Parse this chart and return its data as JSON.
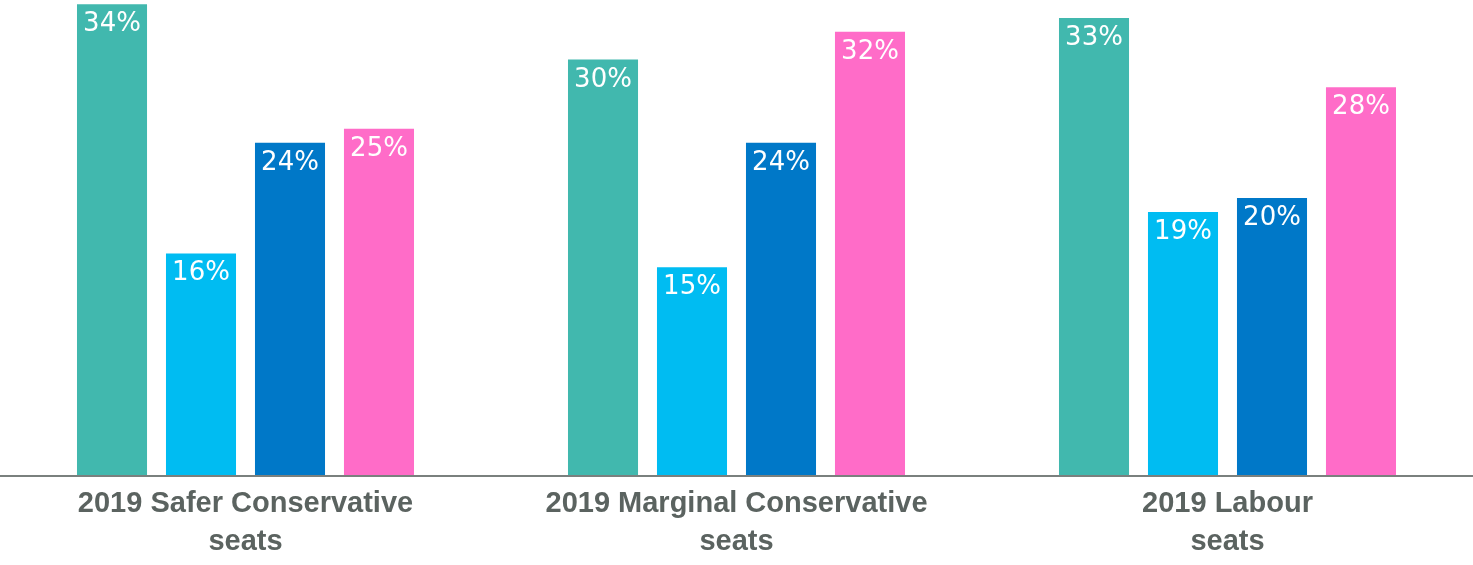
{
  "chart_data": {
    "type": "bar",
    "categories": [
      "2019 Safer Conservative seats",
      "2019 Marginal Conservative seats",
      "2019 Labour seats"
    ],
    "series": [
      {
        "color": "#41b8ae",
        "values": [
          34,
          30,
          33
        ],
        "value_labels": [
          "34%",
          "30%",
          "33%"
        ]
      },
      {
        "color": "#00bcf2",
        "values": [
          16,
          15,
          19
        ],
        "value_labels": [
          "16%",
          "15%",
          "19%"
        ]
      },
      {
        "color": "#0078c8",
        "values": [
          24,
          24,
          20
        ],
        "value_labels": [
          "24%",
          "24%",
          "20%"
        ]
      },
      {
        "color": "#ff6cc8",
        "values": [
          25,
          32,
          28
        ],
        "value_labels": [
          "25%",
          "32%",
          "28%"
        ]
      }
    ],
    "ylim": [
      0,
      34.3
    ]
  }
}
